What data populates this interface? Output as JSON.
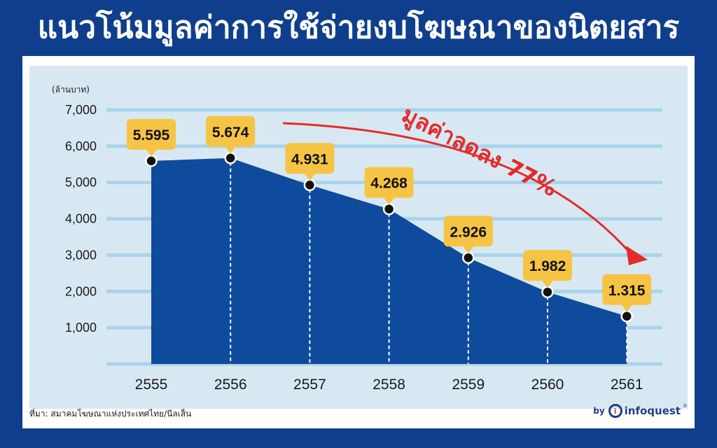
{
  "title": "แนวโน้มมูลค่าการใช้จ่ายงบโฆษณาของนิตยสาร",
  "source": "ที่มา: สมาคมโฆษณาแห่งประเทศไทย/นีลเส็น",
  "brand": {
    "by": "by",
    "logo": "i",
    "name": "infoquest",
    "reg": "®"
  },
  "annotation": "มูลค่าลดลง 77%",
  "colors": {
    "background": "#0f3f8c",
    "panel": "#d8e8f2",
    "area": "#0f4b9c",
    "gridline": "#a9d4ec",
    "label_fill": "#f6c445",
    "arrow": "#e32b2b"
  },
  "chart_data": {
    "type": "area",
    "ylabel": "(ล้านบาท)",
    "ylim": [
      0,
      7000
    ],
    "yticks": [
      "1,000",
      "2,000",
      "3,000",
      "4,000",
      "5,000",
      "6,000",
      "7,000"
    ],
    "ytick_values": [
      1000,
      2000,
      3000,
      4000,
      5000,
      6000,
      7000
    ],
    "categories": [
      "2555",
      "2556",
      "2557",
      "2558",
      "2559",
      "2560",
      "2561"
    ],
    "values": [
      5595,
      5674,
      4931,
      4268,
      2926,
      1982,
      1315
    ],
    "value_labels": [
      "5.595",
      "5.674",
      "4.931",
      "4.268",
      "2.926",
      "1.982",
      "1.315"
    ],
    "grid": true
  }
}
